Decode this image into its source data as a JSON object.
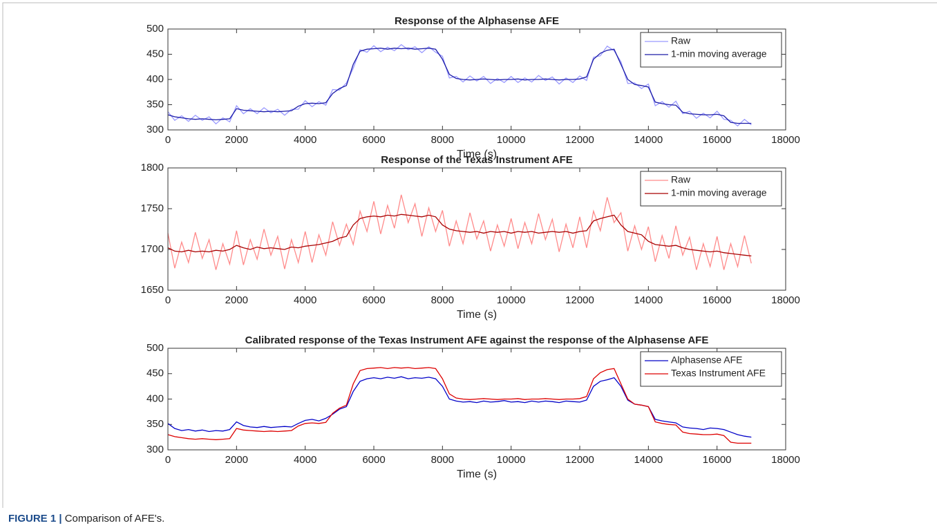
{
  "chart_data": [
    {
      "type": "line",
      "title": "Response of the Alphasense AFE",
      "xlabel": "Time (s)",
      "x": [
        0,
        200,
        400,
        600,
        800,
        1000,
        1200,
        1400,
        1600,
        1800,
        2000,
        2200,
        2400,
        2600,
        2800,
        3000,
        3200,
        3400,
        3600,
        3800,
        4000,
        4200,
        4400,
        4600,
        4800,
        5000,
        5200,
        5400,
        5600,
        5800,
        6000,
        6200,
        6400,
        6600,
        6800,
        7000,
        7200,
        7400,
        7600,
        7800,
        8000,
        8200,
        8400,
        8600,
        8800,
        9000,
        9200,
        9400,
        9600,
        9800,
        10000,
        10200,
        10400,
        10600,
        10800,
        11000,
        11200,
        11400,
        11600,
        11800,
        12000,
        12200,
        12400,
        12600,
        12800,
        13000,
        13200,
        13400,
        13600,
        13800,
        14000,
        14200,
        14400,
        14600,
        14800,
        15000,
        15200,
        15400,
        15600,
        15800,
        16000,
        16200,
        16400,
        16600,
        16800,
        17000
      ],
      "series": [
        {
          "name": "Raw",
          "color": "#9b9bff",
          "values": [
            336,
            319,
            328,
            317,
            329,
            319,
            326,
            312,
            324,
            316,
            348,
            332,
            342,
            332,
            344,
            334,
            341,
            329,
            341,
            341,
            358,
            346,
            356,
            349,
            380,
            379,
            393,
            422,
            459,
            454,
            467,
            455,
            464,
            457,
            469,
            459,
            465,
            453,
            465,
            454,
            446,
            403,
            406,
            395,
            407,
            397,
            406,
            392,
            402,
            394,
            406,
            394,
            403,
            395,
            408,
            398,
            405,
            391,
            403,
            394,
            407,
            398,
            444,
            447,
            466,
            457,
            435,
            392,
            393,
            382,
            391,
            348,
            356,
            345,
            357,
            332,
            337,
            323,
            333,
            324,
            337,
            321,
            319,
            308,
            321,
            310
          ]
        },
        {
          "name": "1-min moving average",
          "color": "#1c1ca8",
          "values": [
            330,
            326,
            324,
            322,
            321,
            322,
            321,
            320,
            321,
            322,
            342,
            339,
            338,
            337,
            336,
            337,
            336,
            337,
            338,
            347,
            352,
            353,
            352,
            354,
            372,
            382,
            388,
            430,
            456,
            460,
            461,
            462,
            460,
            462,
            461,
            462,
            460,
            461,
            462,
            460,
            440,
            410,
            402,
            400,
            399,
            400,
            401,
            400,
            399,
            400,
            400,
            401,
            399,
            400,
            400,
            401,
            400,
            399,
            400,
            400,
            401,
            405,
            440,
            452,
            458,
            460,
            430,
            400,
            390,
            388,
            385,
            355,
            352,
            350,
            349,
            335,
            332,
            331,
            330,
            330,
            331,
            328,
            315,
            313,
            313,
            313
          ]
        }
      ],
      "xlim": [
        0,
        18000
      ],
      "ylim": [
        300,
        500
      ],
      "xticks": [
        0,
        2000,
        4000,
        6000,
        8000,
        10000,
        12000,
        14000,
        16000,
        18000
      ],
      "yticks": [
        300,
        350,
        400,
        450,
        500
      ],
      "legend": "upper right"
    },
    {
      "type": "line",
      "title": "Response of the Texas Instrument AFE",
      "xlabel": "Time (s)",
      "x": [
        0,
        200,
        400,
        600,
        800,
        1000,
        1200,
        1400,
        1600,
        1800,
        2000,
        2200,
        2400,
        2600,
        2800,
        3000,
        3200,
        3400,
        3600,
        3800,
        4000,
        4200,
        4400,
        4600,
        4800,
        5000,
        5200,
        5400,
        5600,
        5800,
        6000,
        6200,
        6400,
        6600,
        6800,
        7000,
        7200,
        7400,
        7600,
        7800,
        8000,
        8200,
        8400,
        8600,
        8800,
        9000,
        9200,
        9400,
        9600,
        9800,
        10000,
        10200,
        10400,
        10600,
        10800,
        11000,
        11200,
        11400,
        11600,
        11800,
        12000,
        12200,
        12400,
        12600,
        12800,
        13000,
        13200,
        13400,
        13600,
        13800,
        14000,
        14200,
        14400,
        14600,
        14800,
        15000,
        15200,
        15400,
        15600,
        15800,
        16000,
        16200,
        16400,
        16600,
        16800,
        17000
      ],
      "series": [
        {
          "name": "Raw",
          "color": "#ff8a8a",
          "values": [
            1720,
            1677,
            1709,
            1684,
            1721,
            1689,
            1712,
            1675,
            1707,
            1682,
            1723,
            1681,
            1712,
            1688,
            1725,
            1693,
            1716,
            1676,
            1712,
            1684,
            1722,
            1684,
            1718,
            1693,
            1734,
            1705,
            1731,
            1706,
            1747,
            1722,
            1759,
            1719,
            1754,
            1726,
            1767,
            1733,
            1756,
            1716,
            1751,
            1722,
            1748,
            1704,
            1735,
            1707,
            1745,
            1713,
            1735,
            1698,
            1730,
            1704,
            1738,
            1701,
            1733,
            1707,
            1744,
            1712,
            1737,
            1697,
            1731,
            1702,
            1740,
            1702,
            1747,
            1723,
            1764,
            1733,
            1745,
            1698,
            1729,
            1700,
            1728,
            1685,
            1717,
            1689,
            1729,
            1693,
            1715,
            1675,
            1707,
            1679,
            1716,
            1675,
            1707,
            1679,
            1717,
            1683
          ]
        },
        {
          "name": "1-min moving average",
          "color": "#a80000",
          "values": [
            1702,
            1698,
            1697,
            1699,
            1697,
            1698,
            1697,
            1699,
            1698,
            1700,
            1705,
            1702,
            1700,
            1703,
            1701,
            1702,
            1701,
            1700,
            1703,
            1702,
            1704,
            1705,
            1706,
            1708,
            1710,
            1714,
            1716,
            1730,
            1738,
            1740,
            1741,
            1740,
            1742,
            1741,
            1743,
            1742,
            1741,
            1740,
            1742,
            1740,
            1730,
            1725,
            1723,
            1722,
            1721,
            1722,
            1720,
            1722,
            1721,
            1722,
            1720,
            1722,
            1721,
            1722,
            1720,
            1721,
            1722,
            1721,
            1722,
            1720,
            1722,
            1723,
            1735,
            1738,
            1740,
            1742,
            1730,
            1722,
            1720,
            1718,
            1710,
            1706,
            1705,
            1704,
            1705,
            1702,
            1700,
            1699,
            1698,
            1697,
            1698,
            1696,
            1695,
            1694,
            1693,
            1692
          ]
        }
      ],
      "xlim": [
        0,
        18000
      ],
      "ylim": [
        1650,
        1800
      ],
      "xticks": [
        0,
        2000,
        4000,
        6000,
        8000,
        10000,
        12000,
        14000,
        16000,
        18000
      ],
      "yticks": [
        1650,
        1700,
        1750,
        1800
      ],
      "legend": "upper right"
    },
    {
      "type": "line",
      "title": "Calibrated response of the Texas Instrument AFE against the response of the Alphasense AFE",
      "xlabel": "Time (s)",
      "x": [
        0,
        200,
        400,
        600,
        800,
        1000,
        1200,
        1400,
        1600,
        1800,
        2000,
        2200,
        2400,
        2600,
        2800,
        3000,
        3200,
        3400,
        3600,
        3800,
        4000,
        4200,
        4400,
        4600,
        4800,
        5000,
        5200,
        5400,
        5600,
        5800,
        6000,
        6200,
        6400,
        6600,
        6800,
        7000,
        7200,
        7400,
        7600,
        7800,
        8000,
        8200,
        8400,
        8600,
        8800,
        9000,
        9200,
        9400,
        9600,
        9800,
        10000,
        10200,
        10400,
        10600,
        10800,
        11000,
        11200,
        11400,
        11600,
        11800,
        12000,
        12200,
        12400,
        12600,
        12800,
        13000,
        13200,
        13400,
        13600,
        13800,
        14000,
        14200,
        14400,
        14600,
        14800,
        15000,
        15200,
        15400,
        15600,
        15800,
        16000,
        16200,
        16400,
        16600,
        16800,
        17000
      ],
      "series": [
        {
          "name": "Alphasense AFE",
          "color": "#0000c8",
          "values": [
            352,
            342,
            338,
            340,
            337,
            339,
            336,
            338,
            337,
            340,
            355,
            348,
            345,
            344,
            346,
            344,
            345,
            346,
            345,
            352,
            358,
            360,
            357,
            362,
            370,
            380,
            385,
            415,
            435,
            440,
            442,
            440,
            443,
            441,
            444,
            440,
            442,
            441,
            443,
            440,
            425,
            400,
            396,
            394,
            395,
            393,
            396,
            394,
            395,
            397,
            394,
            395,
            393,
            396,
            394,
            396,
            395,
            393,
            396,
            395,
            394,
            398,
            425,
            435,
            438,
            442,
            425,
            398,
            390,
            388,
            385,
            360,
            357,
            355,
            353,
            345,
            343,
            342,
            340,
            343,
            342,
            340,
            335,
            330,
            327,
            325
          ]
        },
        {
          "name": "Texas Instrument AFE",
          "color": "#dd0000",
          "values": [
            330,
            326,
            324,
            322,
            321,
            322,
            321,
            320,
            321,
            322,
            342,
            339,
            338,
            337,
            336,
            337,
            336,
            337,
            338,
            347,
            352,
            353,
            352,
            354,
            372,
            382,
            388,
            430,
            456,
            460,
            461,
            462,
            460,
            462,
            461,
            462,
            460,
            461,
            462,
            460,
            440,
            410,
            402,
            400,
            399,
            400,
            401,
            400,
            399,
            400,
            400,
            401,
            399,
            400,
            400,
            401,
            400,
            399,
            400,
            400,
            401,
            405,
            440,
            452,
            458,
            460,
            430,
            400,
            390,
            388,
            385,
            355,
            352,
            350,
            349,
            335,
            332,
            331,
            330,
            330,
            331,
            328,
            315,
            313,
            313,
            313
          ]
        }
      ],
      "xlim": [
        0,
        18000
      ],
      "ylim": [
        300,
        500
      ],
      "xticks": [
        0,
        2000,
        4000,
        6000,
        8000,
        10000,
        12000,
        14000,
        16000,
        18000
      ],
      "yticks": [
        300,
        350,
        400,
        450,
        500
      ],
      "legend": "upper right"
    }
  ],
  "caption": {
    "label": "FIGURE 1 |",
    "text": "Comparison of AFE's."
  }
}
